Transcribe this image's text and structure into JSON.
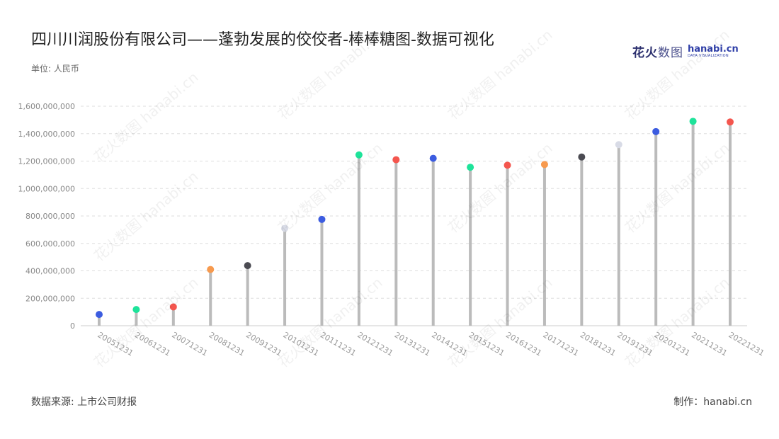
{
  "header": {
    "title": "四川川润股份有限公司——蓬勃发展的佼佼者-棒棒糖图-数据可视化",
    "unit": "单位: 人民币"
  },
  "logo": {
    "text_cn": "花火",
    "text_cn_light": "数图",
    "text_en": "hanabi.cn",
    "text_en_sub": "DATA VISUALIZATION"
  },
  "footer": {
    "source": "数据来源: 上市公司财报",
    "credit": "制作：hanabi.cn"
  },
  "watermark_text": "花火数图 hanabi.cn",
  "chart_data": {
    "type": "lollipop",
    "categories": [
      "20051231",
      "20061231",
      "20071231",
      "20081231",
      "20091231",
      "20101231",
      "20111231",
      "20121231",
      "20131231",
      "20141231",
      "20151231",
      "20161231",
      "20171231",
      "20181231",
      "20191231",
      "20201231",
      "20211231",
      "20221231"
    ],
    "values": [
      82000000,
      118000000,
      137000000,
      410000000,
      438000000,
      710000000,
      775000000,
      1245000000,
      1210000000,
      1220000000,
      1155000000,
      1170000000,
      1175000000,
      1230000000,
      1320000000,
      1415000000,
      1490000000,
      1485000000
    ],
    "dot_colors": [
      "#3c5ce0",
      "#1ee39a",
      "#f4564e",
      "#f79a4e",
      "#4b4b52",
      "#d8dbe6",
      "#3c5ce0",
      "#1ee39a",
      "#f4564e",
      "#3c5ce0",
      "#1ee39a",
      "#f4564e",
      "#f79a4e",
      "#4b4b52",
      "#d8dbe6",
      "#3c5ce0",
      "#1ee39a",
      "#f4564e"
    ],
    "stem_color": "#bbbbbb",
    "ylim": [
      0,
      1600000000
    ],
    "yticks": [
      0,
      200000000,
      400000000,
      600000000,
      800000000,
      1000000000,
      1200000000,
      1400000000,
      1600000000
    ],
    "ytick_labels": [
      "0",
      "200,000,000",
      "400,000,000",
      "600,000,000",
      "800,000,000",
      "1,000,000,000",
      "1,200,000,000",
      "1,400,000,000",
      "1,600,000,000"
    ],
    "grid": true
  }
}
